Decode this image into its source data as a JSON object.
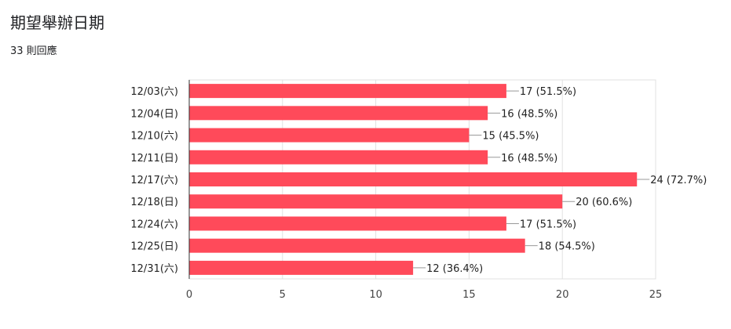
{
  "question": {
    "title": "期望舉辦日期",
    "response_count": "33 則回應"
  },
  "chart_data": {
    "type": "bar",
    "orientation": "horizontal",
    "categories": [
      "12/03(六)",
      "12/04(日)",
      "12/10(六)",
      "12/11(日)",
      "12/17(六)",
      "12/18(日)",
      "12/24(六)",
      "12/25(日)",
      "12/31(六)"
    ],
    "values": [
      17,
      16,
      15,
      16,
      24,
      20,
      17,
      18,
      12
    ],
    "data_labels": [
      "17 (51.5%)",
      "16 (48.5%)",
      "15 (45.5%)",
      "16 (48.5%)",
      "24 (72.7%)",
      "20 (60.6%)",
      "17 (51.5%)",
      "18 (54.5%)",
      "12 (36.4%)"
    ],
    "x_ticks": [
      0,
      5,
      10,
      15,
      20,
      25
    ],
    "xlim": [
      0,
      25
    ],
    "grid": true,
    "colors": {
      "bar": "#ff4a5a",
      "grid": "#e0e0e0",
      "axis": "#333333",
      "text": "#222222",
      "tick": "#444444"
    }
  }
}
